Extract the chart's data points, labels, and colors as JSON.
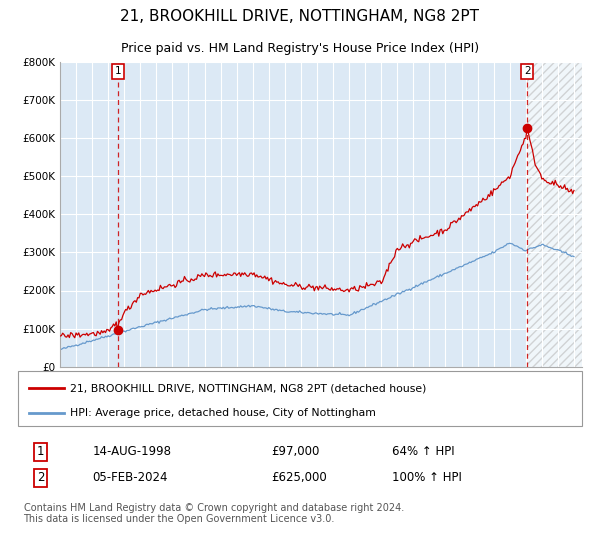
{
  "title": "21, BROOKHILL DRIVE, NOTTINGHAM, NG8 2PT",
  "subtitle": "Price paid vs. HM Land Registry's House Price Index (HPI)",
  "title_fontsize": 11,
  "subtitle_fontsize": 9,
  "background_color": "#ffffff",
  "plot_bg_color": "#dce9f5",
  "grid_color": "#ffffff",
  "ylim": [
    0,
    800000
  ],
  "yticks": [
    0,
    100000,
    200000,
    300000,
    400000,
    500000,
    600000,
    700000,
    800000
  ],
  "ytick_labels": [
    "£0",
    "£100K",
    "£200K",
    "£300K",
    "£400K",
    "£500K",
    "£600K",
    "£700K",
    "£800K"
  ],
  "red_line_color": "#cc0000",
  "blue_line_color": "#6699cc",
  "point1_year": 1998.62,
  "point1_value": 97000,
  "point2_year": 2024.09,
  "point2_value": 625000,
  "vline_color": "#cc0000",
  "legend_label_red": "21, BROOKHILL DRIVE, NOTTINGHAM, NG8 2PT (detached house)",
  "legend_label_blue": "HPI: Average price, detached house, City of Nottingham",
  "table_row1": [
    "1",
    "14-AUG-1998",
    "£97,000",
    "64% ↑ HPI"
  ],
  "table_row2": [
    "2",
    "05-FEB-2024",
    "£625,000",
    "100% ↑ HPI"
  ],
  "footnote": "Contains HM Land Registry data © Crown copyright and database right 2024.\nThis data is licensed under the Open Government Licence v3.0.",
  "footnote_fontsize": 7
}
